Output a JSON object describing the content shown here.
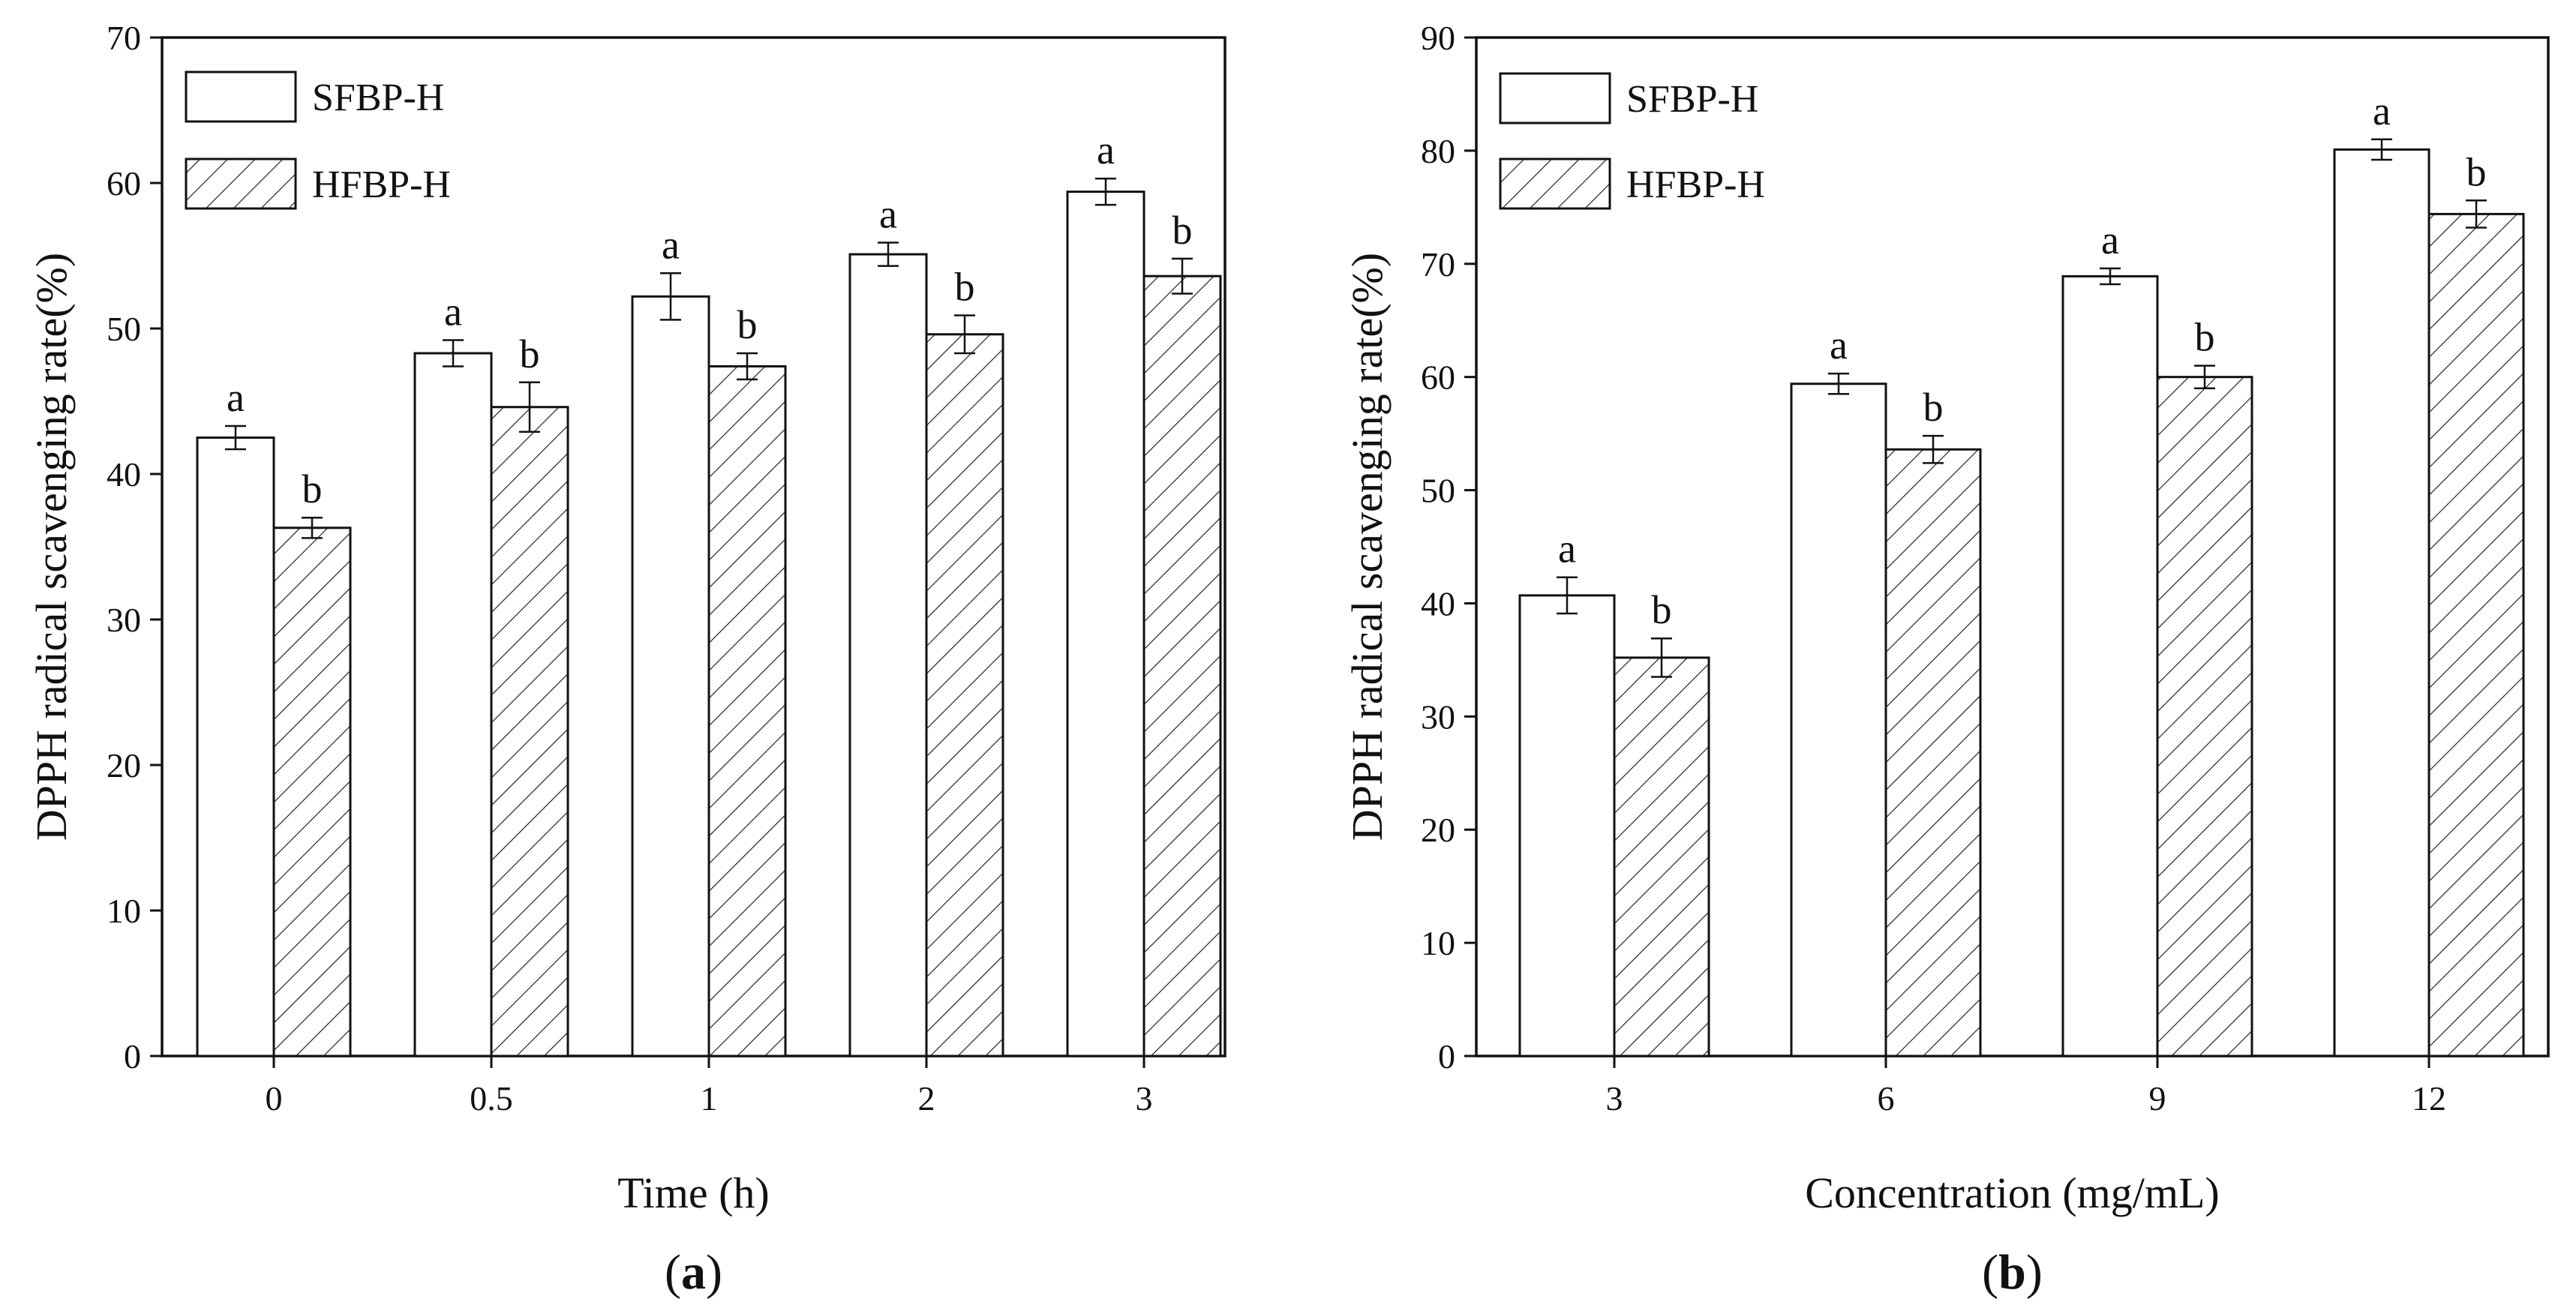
{
  "chart_data": [
    {
      "panel_label": "a",
      "type": "bar",
      "xlabel": "Time (h)",
      "ylabel": "DPPH radical scavenging rate(%)",
      "ylim": [
        0,
        70
      ],
      "yticks": [
        0,
        10,
        20,
        30,
        40,
        50,
        60,
        70
      ],
      "categories": [
        "0",
        "0.5",
        "1",
        "2",
        "3"
      ],
      "legend_position": "top-left",
      "series": [
        {
          "name": "SFBP-H",
          "pattern": "none",
          "values": [
            42.5,
            48.3,
            52.2,
            55.1,
            59.4
          ],
          "errors": [
            0.8,
            0.9,
            1.6,
            0.8,
            0.9
          ],
          "letters": [
            "a",
            "a",
            "a",
            "a",
            "a"
          ]
        },
        {
          "name": "HFBP-H",
          "pattern": "hatch",
          "values": [
            36.3,
            44.6,
            47.4,
            49.6,
            53.6
          ],
          "errors": [
            0.7,
            1.7,
            0.9,
            1.3,
            1.2
          ],
          "letters": [
            "b",
            "b",
            "b",
            "b",
            "b"
          ]
        }
      ]
    },
    {
      "panel_label": "b",
      "type": "bar",
      "xlabel": "Concentration (mg/mL)",
      "ylabel": "DPPH radical scavenging rate(%)",
      "ylim": [
        0,
        90
      ],
      "yticks": [
        0,
        10,
        20,
        30,
        40,
        50,
        60,
        70,
        80,
        90
      ],
      "categories": [
        "3",
        "6",
        "9",
        "12"
      ],
      "legend_position": "top-left",
      "series": [
        {
          "name": "SFBP-H",
          "pattern": "none",
          "values": [
            40.7,
            59.4,
            68.9,
            80.1
          ],
          "errors": [
            1.6,
            0.9,
            0.7,
            0.9
          ],
          "letters": [
            "a",
            "a",
            "a",
            "a"
          ]
        },
        {
          "name": "HFBP-H",
          "pattern": "hatch",
          "values": [
            35.2,
            53.6,
            60.0,
            74.4
          ],
          "errors": [
            1.7,
            1.2,
            1.0,
            1.2
          ],
          "letters": [
            "b",
            "b",
            "b",
            "b"
          ]
        }
      ]
    }
  ]
}
